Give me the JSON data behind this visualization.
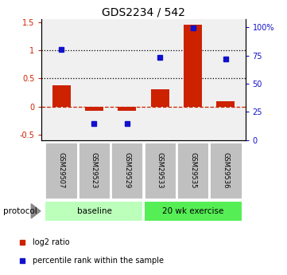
{
  "title": "GDS2234 / 542",
  "samples": [
    "GSM29507",
    "GSM29523",
    "GSM29529",
    "GSM29533",
    "GSM29535",
    "GSM29536"
  ],
  "log2_ratio": [
    0.37,
    -0.07,
    -0.08,
    0.3,
    1.45,
    0.1
  ],
  "percentile_rank_pct": [
    80,
    15,
    15,
    73,
    99,
    72
  ],
  "bar_color": "#cc2200",
  "dot_color": "#1111cc",
  "ylim_left": [
    -0.6,
    1.55
  ],
  "ylim_right": [
    0,
    107
  ],
  "yticks_left": [
    -0.5,
    0.0,
    0.5,
    1.0,
    1.5
  ],
  "yticks_right": [
    0,
    25,
    50,
    75,
    100
  ],
  "ytick_labels_left": [
    "-0.5",
    "0",
    "0.5",
    "1",
    "1.5"
  ],
  "ytick_labels_right": [
    "0",
    "25",
    "50",
    "75",
    "100%"
  ],
  "hlines_dotted": [
    0.5,
    1.0
  ],
  "bar_color_dashed": "#cc2200",
  "group1_label": "baseline",
  "group1_color": "#bbffbb",
  "group2_label": "20 wk exercise",
  "group2_color": "#55ee55",
  "protocol_label": "protocol",
  "legend_red_label": "log2 ratio",
  "legend_blue_label": "percentile rank within the sample",
  "bar_width": 0.55,
  "plot_bg": "#f0f0f0",
  "sample_box_color": "#c0c0c0",
  "sample_box_edge": "#ffffff"
}
